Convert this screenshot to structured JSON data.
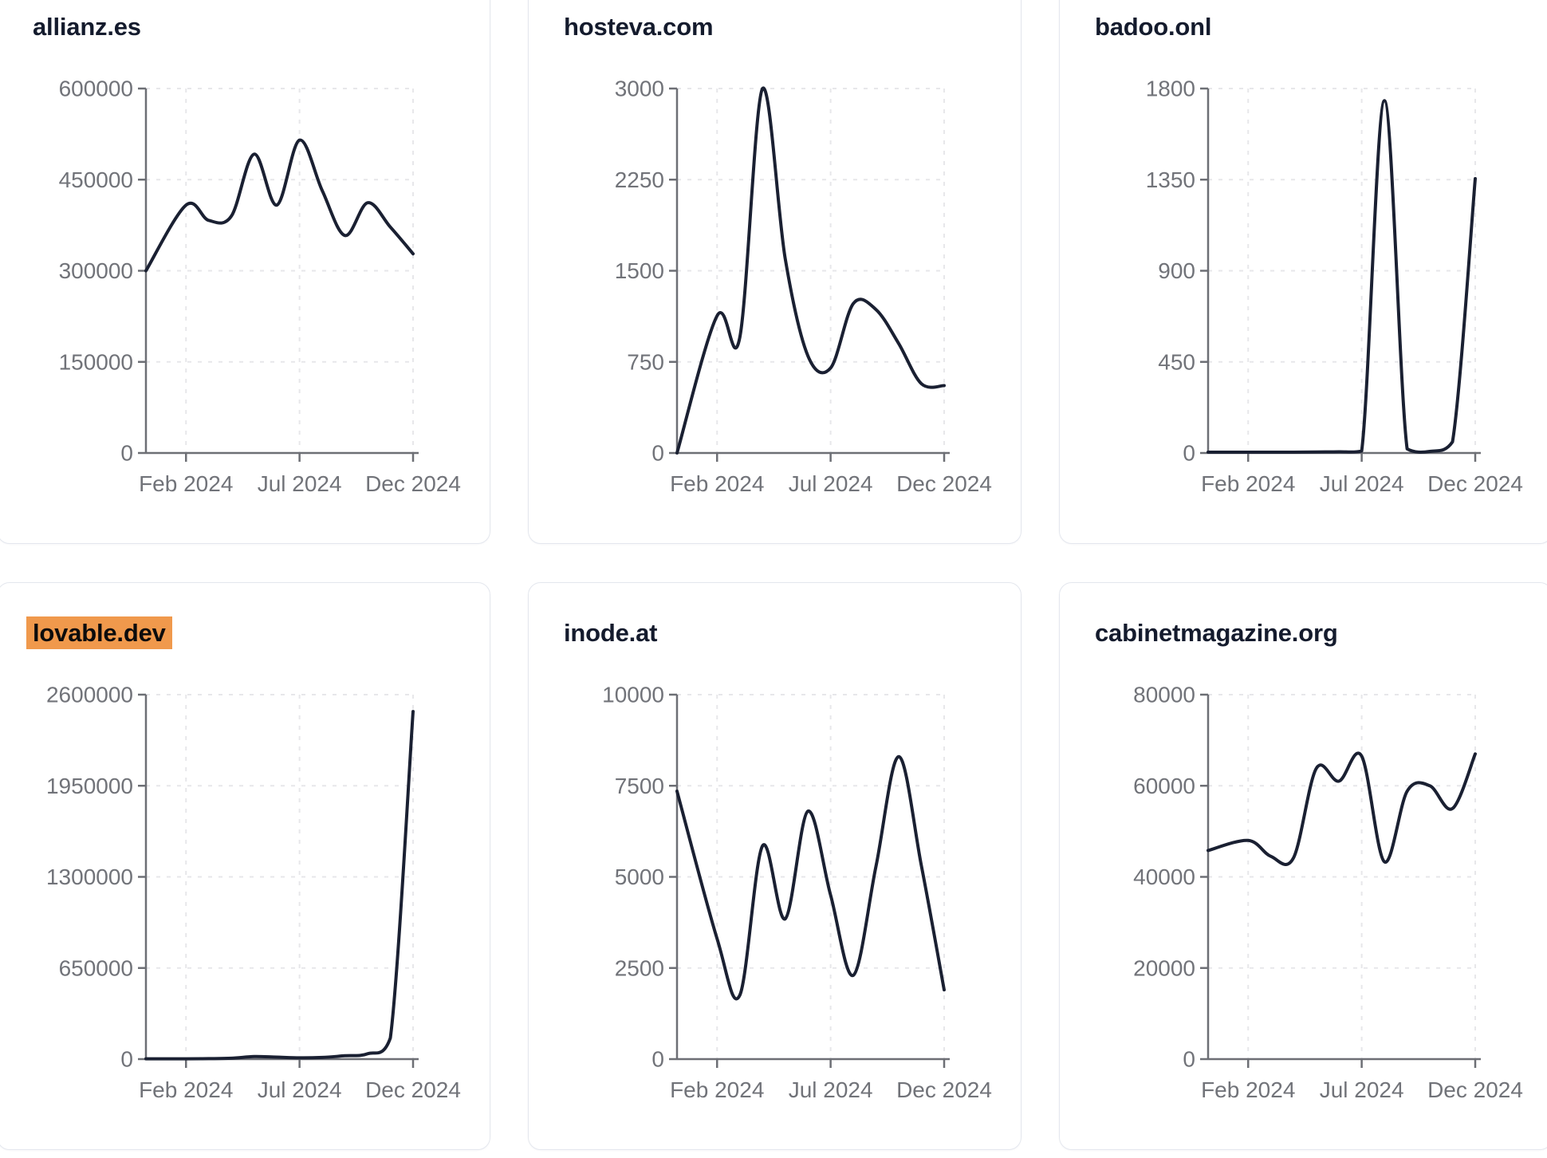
{
  "page": {
    "background": "#ffffff",
    "card_background": "#ffffff",
    "card_border_color": "#e4e7ee",
    "title_color": "#141b2d",
    "highlight_background": "#f0994c",
    "highlight_text_color": "#0c0c0c",
    "line_color": "#1a2032",
    "axis_color": "#6d6f75",
    "tick_label_color": "#717379",
    "grid_color": "#e7e7ea"
  },
  "x_tick_labels": [
    "Feb 2024",
    "Jul 2024",
    "Dec 2024"
  ],
  "chart_data": [
    {
      "type": "line",
      "title": "allianz.es",
      "highlighted": false,
      "x": [
        "2024-01",
        "2024-02",
        "2024-03",
        "2024-04",
        "2024-05",
        "2024-06",
        "2024-07",
        "2024-08",
        "2024-09",
        "2024-10",
        "2024-11",
        "2024-12"
      ],
      "values": [
        300000,
        408000,
        383000,
        390000,
        492000,
        408000,
        515000,
        432000,
        358000,
        412000,
        372000,
        328000
      ],
      "y_ticks": [
        0,
        150000,
        300000,
        450000,
        600000
      ],
      "ylim": [
        0,
        600000
      ],
      "x_tick_labels": [
        "Feb 2024",
        "Jul 2024",
        "Dec 2024"
      ],
      "grid": "dashed",
      "legend": "none"
    },
    {
      "type": "line",
      "title": "hosteva.com",
      "highlighted": false,
      "x": [
        "2024-01",
        "2024-02",
        "2024-03",
        "2024-04",
        "2024-05",
        "2024-06",
        "2024-07",
        "2024-08",
        "2024-09",
        "2024-10",
        "2024-11",
        "2024-12"
      ],
      "values": [
        0,
        1130,
        950,
        3000,
        1600,
        800,
        700,
        1230,
        1180,
        900,
        570,
        555
      ],
      "y_ticks": [
        0,
        750,
        1500,
        2250,
        3000
      ],
      "ylim": [
        0,
        3000
      ],
      "x_tick_labels": [
        "Feb 2024",
        "Jul 2024",
        "Dec 2024"
      ],
      "grid": "dashed",
      "legend": "none"
    },
    {
      "type": "line",
      "title": "badoo.onl",
      "highlighted": false,
      "x": [
        "2024-01",
        "2024-02",
        "2024-03",
        "2024-04",
        "2024-05",
        "2024-06",
        "2024-07",
        "2024-08",
        "2024-09",
        "2024-10",
        "2024-11",
        "2024-12"
      ],
      "values": [
        4,
        4,
        4,
        4,
        5,
        6,
        10,
        1740,
        20,
        8,
        55,
        1355
      ],
      "y_ticks": [
        0,
        450,
        900,
        1350,
        1800
      ],
      "ylim": [
        0,
        1800
      ],
      "x_tick_labels": [
        "Feb 2024",
        "Jul 2024",
        "Dec 2024"
      ],
      "grid": "dashed",
      "legend": "none"
    },
    {
      "type": "line",
      "title": "lovable.dev",
      "highlighted": true,
      "x": [
        "2024-01",
        "2024-02",
        "2024-03",
        "2024-04",
        "2024-05",
        "2024-06",
        "2024-07",
        "2024-08",
        "2024-09",
        "2024-10",
        "2024-11",
        "2024-12"
      ],
      "values": [
        2000,
        2500,
        3500,
        6000,
        18000,
        14000,
        9000,
        12000,
        24000,
        38000,
        150000,
        2480000
      ],
      "y_ticks": [
        0,
        650000,
        1300000,
        1950000,
        2600000
      ],
      "ylim": [
        0,
        2600000
      ],
      "x_tick_labels": [
        "Feb 2024",
        "Jul 2024",
        "Dec 2024"
      ],
      "grid": "dashed",
      "legend": "none"
    },
    {
      "type": "line",
      "title": "inode.at",
      "highlighted": false,
      "x": [
        "2024-01",
        "2024-02",
        "2024-03",
        "2024-04",
        "2024-05",
        "2024-06",
        "2024-07",
        "2024-08",
        "2024-09",
        "2024-10",
        "2024-11",
        "2024-12"
      ],
      "values": [
        7350,
        3300,
        1750,
        5850,
        3850,
        6800,
        4500,
        2300,
        5300,
        8300,
        5300,
        1900
      ],
      "y_ticks": [
        0,
        2500,
        5000,
        7500,
        10000
      ],
      "ylim": [
        0,
        10000
      ],
      "x_tick_labels": [
        "Feb 2024",
        "Jul 2024",
        "Dec 2024"
      ],
      "grid": "dashed",
      "legend": "none"
    },
    {
      "type": "line",
      "title": "cabinetmagazine.org",
      "highlighted": false,
      "x": [
        "2024-01",
        "2024-02",
        "2024-03",
        "2024-04",
        "2024-05",
        "2024-06",
        "2024-07",
        "2024-08",
        "2024-09",
        "2024-10",
        "2024-11",
        "2024-12"
      ],
      "values": [
        45800,
        48000,
        44500,
        44200,
        63800,
        61000,
        66500,
        43300,
        58800,
        60000,
        55000,
        67000
      ],
      "y_ticks": [
        0,
        20000,
        40000,
        60000,
        80000
      ],
      "ylim": [
        0,
        80000
      ],
      "x_tick_labels": [
        "Feb 2024",
        "Jul 2024",
        "Dec 2024"
      ],
      "grid": "dashed",
      "legend": "none"
    }
  ]
}
